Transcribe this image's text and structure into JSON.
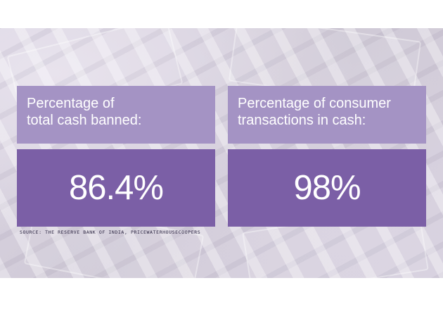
{
  "left_card": {
    "label_line1": "Percentage of",
    "label_line2": "total cash banned:",
    "value": "86.4%"
  },
  "right_card": {
    "label_line1": "Percentage of consumer",
    "label_line2": "transactions in cash:",
    "value": "98%"
  },
  "source": "SOURCE:  THE RESERVE BANK OF INDIA, PRICEWATERHOUSECOOPERS",
  "colors": {
    "label_bg": "#a493c4",
    "value_bg": "#7b5fa6",
    "text": "#ffffff"
  }
}
